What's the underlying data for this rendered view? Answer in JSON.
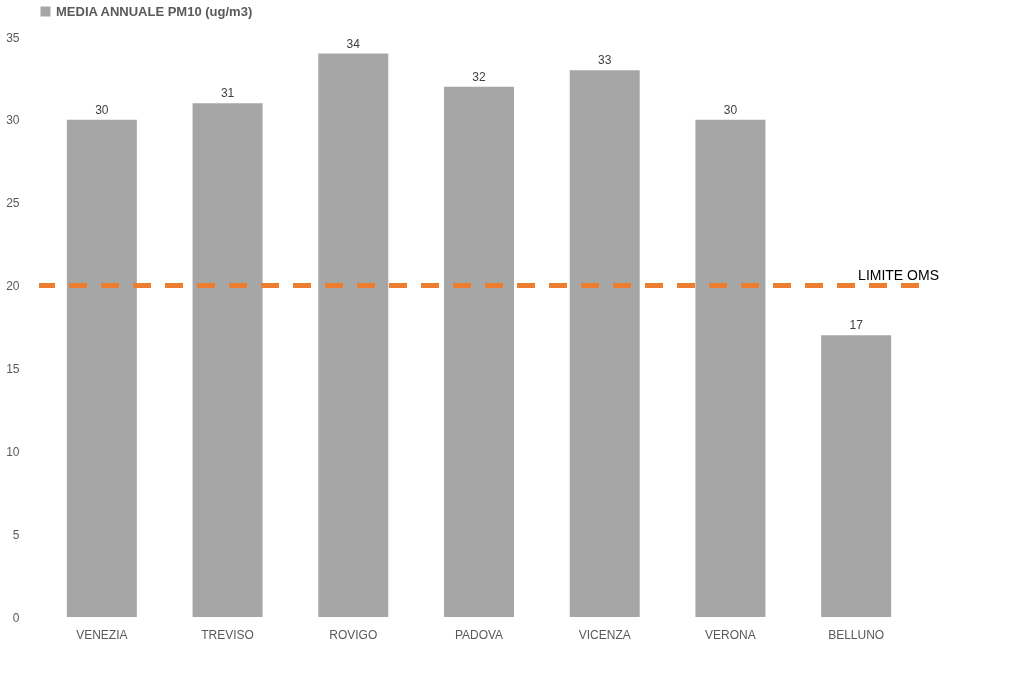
{
  "chart_data": {
    "type": "bar",
    "categories": [
      "VENEZIA",
      "TREVISO",
      "ROVIGO",
      "PADOVA",
      "VICENZA",
      "VERONA",
      "BELLUNO"
    ],
    "series": [
      {
        "name": "MEDIA ANNUALE PM10 (ug/m3)",
        "color": "#a6a6a6",
        "values": [
          30,
          31,
          34,
          32,
          33,
          30,
          17
        ]
      }
    ],
    "ylim": [
      0,
      35
    ],
    "yticks": [
      0,
      5,
      10,
      15,
      20,
      25,
      30,
      35
    ],
    "grid": false,
    "legend": "top",
    "data_labels": true,
    "ref_lines": [
      {
        "axis": "y",
        "value": 20,
        "label": "LIMITE OMS",
        "color": "#ed7d31",
        "line_style": "dashed"
      }
    ]
  }
}
